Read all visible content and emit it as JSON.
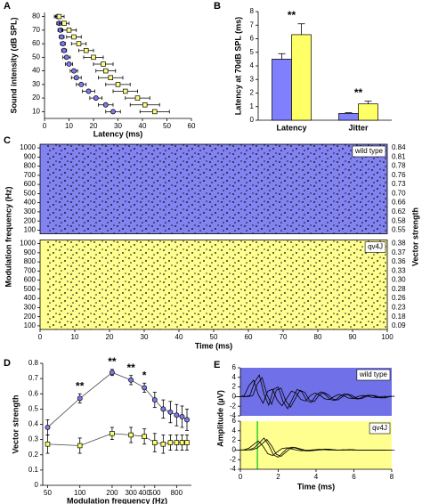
{
  "chart_data": [
    {
      "type": "scatter",
      "letter": "A",
      "xlabel": "Latency (ms)",
      "ylabel": "Sound intensity (dB SPL)",
      "xlim": [
        0,
        60
      ],
      "xticks": [
        0,
        10,
        20,
        30,
        40,
        50,
        60
      ],
      "ylim": [
        5,
        83
      ],
      "yticks": [
        10,
        20,
        30,
        40,
        50,
        60,
        70,
        80
      ],
      "y": [
        10,
        15,
        20,
        25,
        30,
        35,
        40,
        45,
        50,
        55,
        60,
        65,
        70,
        75,
        80
      ],
      "series": [
        {
          "color": "#7b7bf0",
          "marker": "circle",
          "x": [
            28,
            25,
            21,
            18,
            15,
            13,
            12,
            10,
            9,
            8,
            7.5,
            7,
            6.5,
            6,
            5.5
          ],
          "xerr": [
            3,
            3,
            2.5,
            2.5,
            2,
            2,
            1.5,
            1.5,
            1.5,
            1,
            1,
            1,
            1,
            1,
            1
          ]
        },
        {
          "color": "#ffff80",
          "marker": "square",
          "x": [
            45,
            41,
            38,
            33,
            30,
            27,
            25,
            24,
            20,
            17,
            14,
            12,
            10,
            8,
            6
          ],
          "xerr": [
            6,
            6,
            5,
            5,
            5,
            5,
            4,
            4,
            4,
            3,
            3,
            3,
            3,
            2,
            2
          ]
        }
      ]
    },
    {
      "type": "bar",
      "letter": "B",
      "ylabel": "Latency at 70dB SPL (ms)",
      "categories": [
        "Latency",
        "Jitter"
      ],
      "ylim": [
        0,
        8
      ],
      "yticks": [
        0,
        1,
        2,
        3,
        4,
        5,
        6,
        7,
        8
      ],
      "series": [
        {
          "color": "#8080ff",
          "values": [
            4.5,
            0.5
          ],
          "errors": [
            0.4,
            0.05
          ]
        },
        {
          "color": "#ffff66",
          "values": [
            6.3,
            1.2
          ],
          "errors": [
            0.8,
            0.2
          ]
        }
      ],
      "annotations": [
        "**",
        "**"
      ]
    },
    {
      "type": "raster",
      "letter": "C",
      "ylabel": "Modulation frequency (Hz)",
      "y2label": "Vector strength",
      "xlabel": "Time (ms)",
      "xlim": [
        0,
        100
      ],
      "xticks": [
        0,
        10,
        20,
        30,
        40,
        50,
        60,
        70,
        80,
        90,
        100
      ],
      "panels": [
        {
          "label": "wild type",
          "color": "#8282f0",
          "ylim": [
            60,
            1040
          ],
          "yticks": [
            100,
            200,
            300,
            400,
            500,
            600,
            700,
            800,
            900,
            1000
          ],
          "right_labels": [
            "0.55",
            "0.58",
            "0.62",
            "0.66",
            "0.70",
            "0.73",
            "0.76",
            "0.78",
            "0.81",
            "0.84"
          ]
        },
        {
          "label": "qv4J",
          "color": "#ffff90",
          "ylim": [
            60,
            1040
          ],
          "yticks": [
            100,
            200,
            300,
            400,
            500,
            600,
            700,
            800,
            900,
            1000
          ],
          "right_labels": [
            "0.09",
            "0.18",
            "0.23",
            "0.26",
            "0.28",
            "0.30",
            "0.33",
            "0.36",
            "0.37",
            "0.38"
          ]
        }
      ]
    },
    {
      "type": "line",
      "letter": "D",
      "xlabel": "Modulation frequency (Hz)",
      "ylabel": "Vector strength",
      "log_x": true,
      "xlim": [
        45,
        1100
      ],
      "xticks": [
        50,
        100,
        200,
        300,
        400,
        500,
        800
      ],
      "ylim": [
        0,
        0.8
      ],
      "yticks": [
        0,
        0.1,
        0.2,
        0.3,
        0.4,
        0.5,
        0.6,
        0.7,
        0.8
      ],
      "x": [
        50,
        100,
        200,
        300,
        400,
        500,
        600,
        700,
        800,
        900,
        1000
      ],
      "series": [
        {
          "color": "#7b7bf0",
          "marker": "circle",
          "values": [
            0.38,
            0.57,
            0.74,
            0.69,
            0.64,
            0.56,
            0.5,
            0.48,
            0.46,
            0.45,
            0.43
          ],
          "errors": [
            0.05,
            0.03,
            0.02,
            0.03,
            0.03,
            0.05,
            0.06,
            0.07,
            0.07,
            0.07,
            0.07
          ]
        },
        {
          "color": "#ffff66",
          "marker": "square",
          "values": [
            0.27,
            0.26,
            0.34,
            0.33,
            0.32,
            0.28,
            0.27,
            0.28,
            0.28,
            0.28,
            0.28
          ],
          "errors": [
            0.06,
            0.05,
            0.04,
            0.05,
            0.05,
            0.06,
            0.06,
            0.05,
            0.05,
            0.05,
            0.05
          ]
        }
      ],
      "annotations": [
        {
          "text": "**",
          "x": 100
        },
        {
          "text": "**",
          "x": 200
        },
        {
          "text": "**",
          "x": 300
        },
        {
          "text": "*",
          "x": 400
        }
      ]
    },
    {
      "type": "trace",
      "letter": "E",
      "ylabel": "Amplitude (µV)",
      "xlabel": "Time (ms)",
      "xlim": [
        0,
        8
      ],
      "xticks": [
        0,
        2,
        4,
        6,
        8
      ],
      "x": [
        0,
        0.25,
        0.5,
        0.75,
        1,
        1.25,
        1.5,
        1.75,
        2,
        2.25,
        2.5,
        2.75,
        3,
        3.25,
        3.5,
        3.75,
        4,
        4.25,
        4.5,
        4.75,
        5,
        5.25,
        5.5,
        5.75,
        6,
        6.25,
        6.5,
        6.75,
        7,
        7.25,
        7.5,
        7.75,
        8
      ],
      "panels": [
        {
          "label": "wild type",
          "color": "#7070e8",
          "ylim": [
            -4,
            6
          ],
          "yticks": [
            -4,
            -2,
            0,
            2,
            4,
            6
          ],
          "values": [
            0,
            0,
            0.2,
            3,
            4.5,
            0.5,
            -1.8,
            1.5,
            2,
            -1,
            -2.5,
            -0.5,
            1.5,
            1,
            -0.8,
            -1.2,
            0.3,
            1,
            0.4,
            -0.6,
            -0.8,
            0,
            0.6,
            0.3,
            -0.4,
            -0.5,
            0,
            0.3,
            0.2,
            -0.2,
            -0.3,
            0,
            0.1
          ]
        },
        {
          "label": "qv4J",
          "color": "#ffff90",
          "ylim": [
            -4,
            6
          ],
          "yticks": [
            -4,
            -2,
            0,
            2,
            4,
            6
          ],
          "marker_x": 0.9,
          "marker_color": "#33cc33",
          "values": [
            0,
            0,
            0.1,
            0.5,
            1.5,
            2.5,
            1,
            -1,
            -1.5,
            -0.5,
            0.4,
            0.6,
            0.3,
            0,
            -0.2,
            -0.1,
            0,
            0.1,
            0.2,
            0.1,
            0,
            0,
            0,
            0.1,
            0,
            0,
            0,
            0,
            0,
            0,
            0,
            0,
            0
          ]
        }
      ]
    }
  ]
}
